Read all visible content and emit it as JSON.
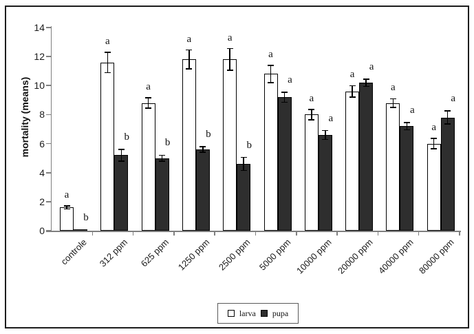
{
  "figure": {
    "background": "#ffffff",
    "border_color": "#1c1c1c",
    "axis_color": "#7f7f7f",
    "error_bar_color": "#000000"
  },
  "chart_data": {
    "type": "bar",
    "title": "",
    "xlabel": "",
    "ylabel": "mortality (means)",
    "ylim": [
      0,
      14
    ],
    "yticks": [
      0,
      2,
      4,
      6,
      8,
      10,
      12,
      14
    ],
    "grid": false,
    "legend_position": "bottom-center",
    "categories": [
      "controle",
      "312 ppm",
      "625 ppm",
      "1250 ppm",
      "2500 ppm",
      "5000 ppm",
      "10000 ppm",
      "20000 ppm",
      "40000 ppm",
      "80000 ppm"
    ],
    "series": [
      {
        "name": "larva",
        "fill": "#ffffff",
        "values": [
          1.6,
          11.6,
          8.8,
          11.8,
          11.8,
          10.8,
          8.0,
          9.6,
          8.8,
          6.0
        ],
        "errors": [
          0.1,
          0.7,
          0.35,
          0.65,
          0.75,
          0.6,
          0.35,
          0.4,
          0.3,
          0.35
        ],
        "letters": [
          "a",
          "a",
          "a",
          "a",
          "a",
          "a",
          "a",
          "a",
          "a",
          "a"
        ]
      },
      {
        "name": "pupa",
        "fill": "#2e2e2e",
        "values": [
          0.05,
          5.2,
          5.0,
          5.6,
          4.6,
          9.2,
          6.6,
          10.2,
          7.2,
          7.8
        ],
        "errors": [
          0,
          0.4,
          0.2,
          0.2,
          0.45,
          0.35,
          0.3,
          0.25,
          0.25,
          0.45
        ],
        "letters": [
          "b",
          "b",
          "b",
          "b",
          "b",
          "a",
          "a",
          "a",
          "a",
          "a"
        ]
      }
    ]
  }
}
